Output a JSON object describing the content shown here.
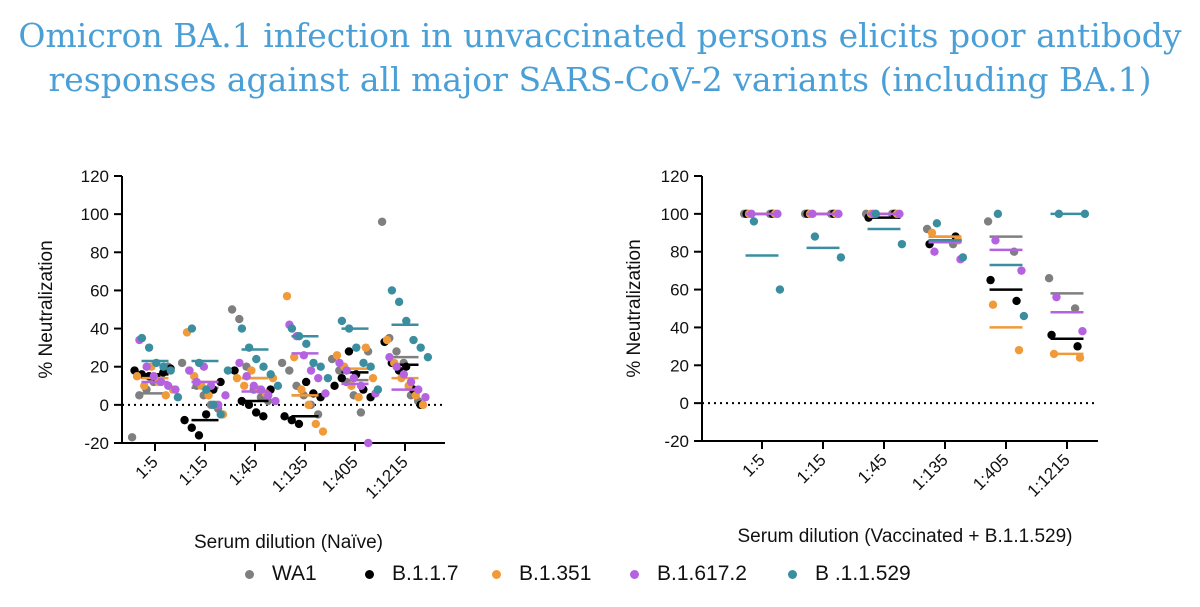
{
  "title": {
    "line1": "Omicron BA.1 infection in unvaccinated persons elicits poor antibody",
    "line2": "responses against all major SARS-CoV-2 variants (including BA.1)"
  },
  "legend": [
    {
      "name": "WA1",
      "color": "#7f7f7f"
    },
    {
      "name": "B.1.1.7",
      "color": "#000000"
    },
    {
      "name": "B.1.351",
      "color": "#f09a3a"
    },
    {
      "name": "B.1.617.2",
      "color": "#b462e0"
    },
    {
      "name": "B .1.1.529",
      "color": "#3a8ea0"
    }
  ],
  "chart_data": [
    {
      "type": "scatter",
      "xlabel": "Serum dilution (Naïve)",
      "ylabel": "% Neutralization",
      "ylim": [
        -20,
        120
      ],
      "yticks": [
        -20,
        0,
        20,
        40,
        60,
        80,
        100,
        120
      ],
      "categories": [
        "1:5",
        "1:15",
        "1:45",
        "1:135",
        "1:405",
        "1:1215"
      ],
      "reference_line": 0,
      "series": [
        {
          "name": "WA1",
          "color": "#7f7f7f",
          "points": [
            [
              -17,
              5,
              8,
              12,
              15,
              20
            ],
            [
              22,
              18,
              10,
              5,
              0,
              -2
            ],
            [
              50,
              45,
              20,
              8,
              4,
              2
            ],
            [
              22,
              18,
              10,
              5,
              0,
              -5
            ],
            [
              24,
              18,
              12,
              5,
              -4,
              28
            ],
            [
              96,
              35,
              28,
              22,
              5,
              2
            ]
          ],
          "means": [
            6,
            9,
            14,
            5,
            13,
            25
          ]
        },
        {
          "name": "B.1.1.7",
          "color": "#000000",
          "points": [
            [
              18,
              16,
              15,
              14,
              17,
              19
            ],
            [
              -8,
              -12,
              -16,
              -5,
              8,
              12
            ],
            [
              18,
              2,
              0,
              -4,
              -6,
              8
            ],
            [
              -6,
              -8,
              -10,
              12,
              6,
              4
            ],
            [
              10,
              14,
              28,
              16,
              8,
              4
            ],
            [
              33,
              22,
              18,
              20,
              8,
              0
            ]
          ],
          "means": [
            16,
            -8,
            2,
            -6,
            17,
            21
          ]
        },
        {
          "name": "B.1.351",
          "color": "#f09a3a",
          "points": [
            [
              15,
              10,
              20,
              12,
              5,
              8
            ],
            [
              38,
              15,
              10,
              5,
              0,
              -5
            ],
            [
              14,
              10,
              18,
              8,
              6,
              14
            ],
            [
              57,
              25,
              8,
              0,
              -10,
              -14
            ],
            [
              26,
              20,
              10,
              4,
              30,
              14
            ],
            [
              34,
              22,
              14,
              10,
              5,
              0
            ]
          ],
          "means": [
            14,
            12,
            14,
            5,
            19,
            14
          ]
        },
        {
          "name": "B.1.617.2",
          "color": "#b462e0",
          "points": [
            [
              34,
              20,
              15,
              12,
              10,
              8
            ],
            [
              18,
              12,
              20,
              10,
              0,
              5
            ],
            [
              22,
              15,
              10,
              8,
              5,
              2
            ],
            [
              42,
              36,
              26,
              18,
              14,
              6
            ],
            [
              22,
              18,
              14,
              10,
              -20,
              6
            ],
            [
              25,
              20,
              16,
              12,
              8,
              4
            ]
          ],
          "means": [
            12,
            12,
            7,
            27,
            11,
            8
          ]
        },
        {
          "name": "B .1.1.529",
          "color": "#3a8ea0",
          "points": [
            [
              35,
              30,
              22,
              20,
              18,
              4
            ],
            [
              40,
              22,
              8,
              0,
              -5,
              18
            ],
            [
              40,
              30,
              24,
              20,
              16,
              10
            ],
            [
              40,
              36,
              32,
              22,
              20,
              14
            ],
            [
              44,
              40,
              30,
              22,
              20,
              8
            ],
            [
              60,
              54,
              44,
              34,
              30,
              25
            ]
          ],
          "means": [
            23,
            23,
            29,
            36,
            40,
            42
          ]
        }
      ]
    },
    {
      "type": "scatter",
      "xlabel": "Serum dilution (Vaccinated + B.1.1.529)",
      "ylabel": "% Neutralization",
      "ylim": [
        -20,
        120
      ],
      "yticks": [
        -20,
        0,
        20,
        40,
        60,
        80,
        100,
        120
      ],
      "categories": [
        "1:5",
        "1:15",
        "1:45",
        "1:135",
        "1:405",
        "1:1215"
      ],
      "reference_line": 0,
      "series": [
        {
          "name": "WA1",
          "color": "#7f7f7f",
          "points": [
            [
              100,
              100
            ],
            [
              100,
              100
            ],
            [
              100,
              100
            ],
            [
              92,
              84
            ],
            [
              96,
              80
            ],
            [
              66,
              50
            ]
          ],
          "means": [
            100,
            100,
            100,
            88,
            88,
            58
          ]
        },
        {
          "name": "B.1.1.7",
          "color": "#000000",
          "points": [
            [
              100,
              100
            ],
            [
              100,
              100
            ],
            [
              98,
              100
            ],
            [
              84,
              88
            ],
            [
              65,
              54
            ],
            [
              36,
              30
            ]
          ],
          "means": [
            100,
            100,
            98,
            86,
            60,
            34
          ]
        },
        {
          "name": "B.1.351",
          "color": "#f09a3a",
          "points": [
            [
              100,
              100
            ],
            [
              100,
              100
            ],
            [
              100,
              100
            ],
            [
              90,
              86
            ],
            [
              52,
              28
            ],
            [
              26,
              24
            ]
          ],
          "means": [
            100,
            100,
            100,
            88,
            40,
            26
          ]
        },
        {
          "name": "B.1.617.2",
          "color": "#b462e0",
          "points": [
            [
              100,
              100
            ],
            [
              100,
              100
            ],
            [
              100,
              100
            ],
            [
              80,
              76
            ],
            [
              86,
              70
            ],
            [
              56,
              38
            ]
          ],
          "means": [
            100,
            100,
            100,
            85,
            81,
            48
          ]
        },
        {
          "name": "B .1.1.529",
          "color": "#3a8ea0",
          "points": [
            [
              96,
              60
            ],
            [
              88,
              77
            ],
            [
              100,
              84
            ],
            [
              95,
              77
            ],
            [
              100,
              46
            ],
            [
              100,
              100
            ]
          ],
          "means": [
            78,
            82,
            92,
            86,
            73,
            100
          ]
        }
      ]
    }
  ]
}
